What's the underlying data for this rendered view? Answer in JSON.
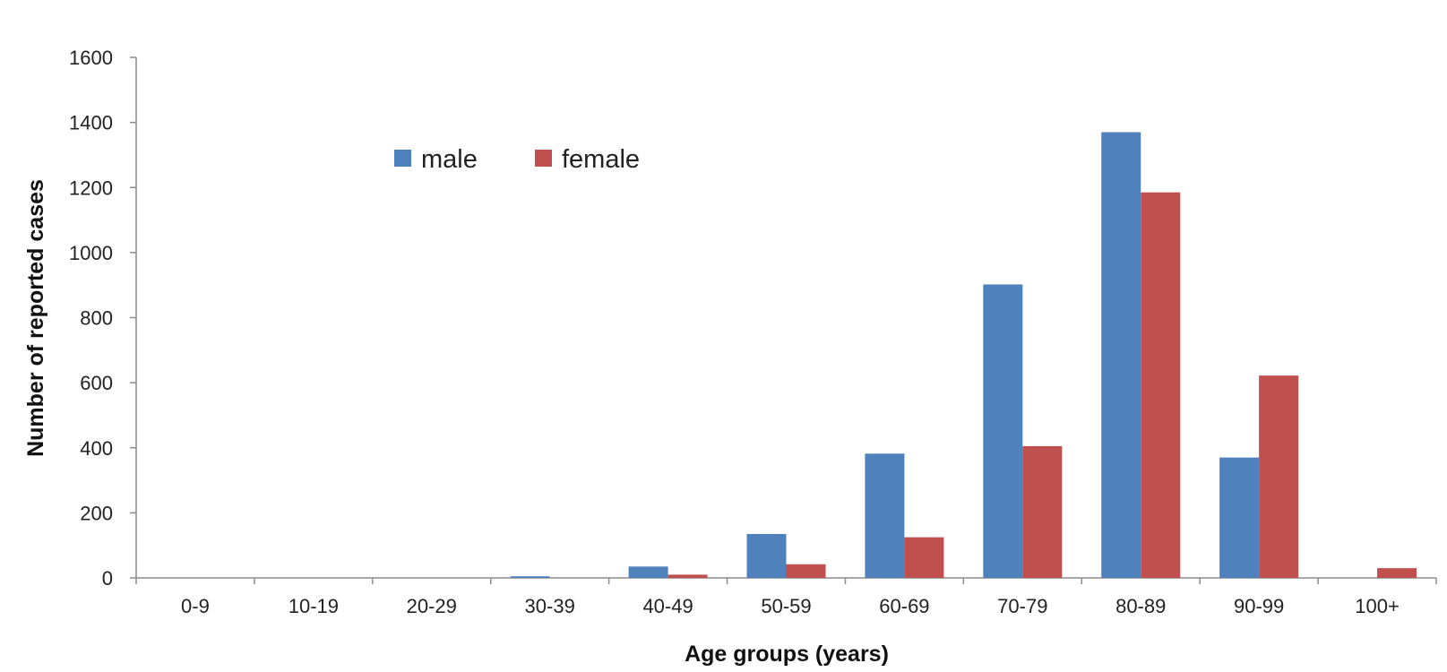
{
  "chart_data": {
    "type": "bar",
    "title": "",
    "xlabel": "Age groups (years)",
    "ylabel": "Number of reported cases",
    "categories": [
      "0-9",
      "10-19",
      "20-29",
      "30-39",
      "40-49",
      "50-59",
      "60-69",
      "70-79",
      "80-89",
      "90-99",
      "100+"
    ],
    "series": [
      {
        "name": "male",
        "color": "#4f81bd",
        "values": [
          0,
          0,
          0,
          5,
          35,
          135,
          382,
          902,
          1370,
          370,
          0
        ]
      },
      {
        "name": "female",
        "color": "#c0504d",
        "values": [
          0,
          0,
          0,
          0,
          10,
          42,
          125,
          405,
          1185,
          622,
          30
        ]
      }
    ],
    "ylim": [
      0,
      1600
    ],
    "yticks": [
      0,
      200,
      400,
      600,
      800,
      1000,
      1200,
      1400,
      1600
    ],
    "grid": false,
    "legend": "top-left, horizontal"
  }
}
